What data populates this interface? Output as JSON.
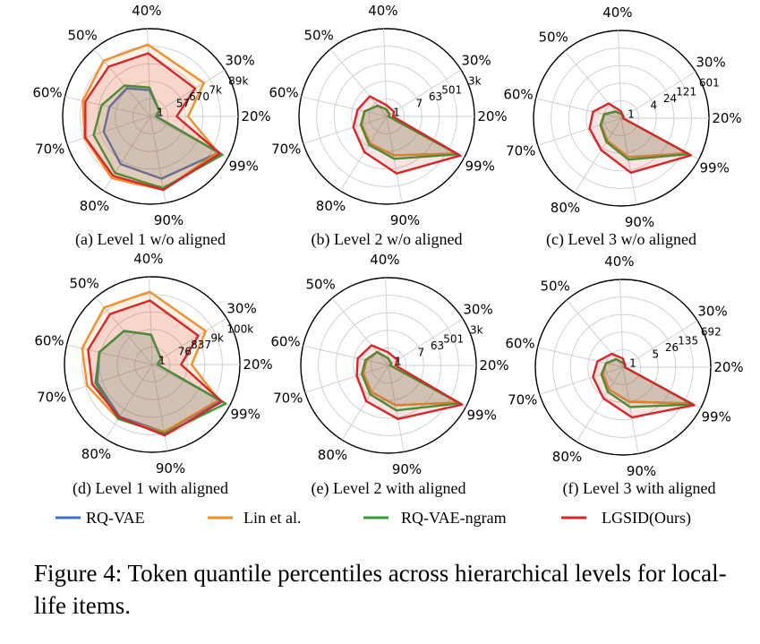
{
  "chart_data": [
    {
      "type": "radar",
      "title": "(a) Level 1 w/o aligned",
      "categories": [
        "20%",
        "30%",
        "40%",
        "50%",
        "60%",
        "70%",
        "80%",
        "90%",
        "99%"
      ],
      "radial_tick_labels": [
        "1",
        "57",
        "670",
        "7k",
        "89k"
      ],
      "series": [
        {
          "name": "RQ-VAE",
          "values": [
            0.07,
            0.12,
            0.3,
            0.42,
            0.48,
            0.56,
            0.64,
            0.72,
            0.88
          ]
        },
        {
          "name": "Lin et al.",
          "values": [
            0.43,
            0.72,
            0.82,
            0.83,
            0.79,
            0.79,
            0.83,
            0.85,
            0.87
          ]
        },
        {
          "name": "RQ-VAE-ngram",
          "values": [
            0.06,
            0.12,
            0.33,
            0.46,
            0.57,
            0.68,
            0.76,
            0.83,
            0.93
          ]
        },
        {
          "name": "LGSID(Ours)",
          "values": [
            0.3,
            0.6,
            0.72,
            0.74,
            0.76,
            0.78,
            0.8,
            0.85,
            0.9
          ]
        }
      ]
    },
    {
      "type": "radar",
      "title": "(b) Level 2 w/o aligned",
      "categories": [
        "20%",
        "30%",
        "40%",
        "50%",
        "60%",
        "70%",
        "80%",
        "90%",
        "99%"
      ],
      "radial_tick_labels": [
        "1",
        "7",
        "63",
        "501",
        "3k"
      ],
      "series": [
        {
          "name": "RQ-VAE",
          "values": [
            0.02,
            0.04,
            0.08,
            0.16,
            0.26,
            0.3,
            0.36,
            0.45,
            0.9
          ]
        },
        {
          "name": "Lin et al.",
          "values": [
            0.02,
            0.04,
            0.08,
            0.16,
            0.26,
            0.3,
            0.36,
            0.45,
            0.9
          ]
        },
        {
          "name": "RQ-VAE-ngram",
          "values": [
            0.02,
            0.04,
            0.08,
            0.16,
            0.26,
            0.31,
            0.38,
            0.49,
            0.92
          ]
        },
        {
          "name": "LGSID(Ours)",
          "values": [
            0.07,
            0.1,
            0.13,
            0.3,
            0.34,
            0.4,
            0.48,
            0.66,
            0.95
          ]
        }
      ]
    },
    {
      "type": "radar",
      "title": "(c) Level 3 w/o aligned",
      "categories": [
        "20%",
        "30%",
        "40%",
        "50%",
        "60%",
        "70%",
        "80%",
        "90%",
        "99%"
      ],
      "radial_tick_labels": [
        "1",
        "4",
        "24",
        "121",
        "601"
      ],
      "series": [
        {
          "name": "RQ-VAE",
          "values": [
            0.02,
            0.03,
            0.05,
            0.1,
            0.2,
            0.24,
            0.3,
            0.45,
            0.85
          ]
        },
        {
          "name": "Lin et al.",
          "values": [
            0.02,
            0.03,
            0.05,
            0.1,
            0.2,
            0.24,
            0.3,
            0.45,
            0.85
          ]
        },
        {
          "name": "RQ-VAE-ngram",
          "values": [
            0.02,
            0.03,
            0.05,
            0.1,
            0.2,
            0.25,
            0.32,
            0.48,
            0.87
          ]
        },
        {
          "name": "LGSID(Ours)",
          "values": [
            0.02,
            0.03,
            0.08,
            0.22,
            0.33,
            0.38,
            0.43,
            0.63,
            0.9
          ]
        }
      ]
    },
    {
      "type": "radar",
      "title": "(d) Level 1 with aligned",
      "categories": [
        "20%",
        "30%",
        "40%",
        "50%",
        "60%",
        "70%",
        "80%",
        "90%",
        "99%"
      ],
      "radial_tick_labels": [
        "1",
        "76",
        "837",
        "9k",
        "100k"
      ],
      "series": [
        {
          "name": "RQ-VAE",
          "values": [
            0.06,
            0.12,
            0.34,
            0.5,
            0.62,
            0.66,
            0.7,
            0.78,
            0.88
          ]
        },
        {
          "name": "Lin et al.",
          "values": [
            0.45,
            0.72,
            0.83,
            0.85,
            0.82,
            0.78,
            0.73,
            0.78,
            0.86
          ]
        },
        {
          "name": "RQ-VAE-ngram",
          "values": [
            0.06,
            0.12,
            0.34,
            0.5,
            0.62,
            0.68,
            0.73,
            0.8,
            0.95
          ]
        },
        {
          "name": "LGSID(Ours)",
          "values": [
            0.33,
            0.62,
            0.73,
            0.75,
            0.75,
            0.72,
            0.71,
            0.82,
            0.9
          ]
        }
      ]
    },
    {
      "type": "radar",
      "title": "(e) Level 2 with aligned",
      "categories": [
        "20%",
        "30%",
        "40%",
        "50%",
        "60%",
        "70%",
        "80%",
        "90%",
        "99%"
      ],
      "radial_tick_labels": [
        "1",
        "7",
        "63",
        "501",
        "3k"
      ],
      "series": [
        {
          "name": "RQ-VAE",
          "values": [
            0.02,
            0.04,
            0.08,
            0.2,
            0.26,
            0.3,
            0.36,
            0.46,
            0.9
          ]
        },
        {
          "name": "Lin et al.",
          "values": [
            0.02,
            0.04,
            0.08,
            0.2,
            0.26,
            0.3,
            0.36,
            0.46,
            0.9
          ]
        },
        {
          "name": "RQ-VAE-ngram",
          "values": [
            0.02,
            0.04,
            0.08,
            0.2,
            0.27,
            0.32,
            0.39,
            0.52,
            0.92
          ]
        },
        {
          "name": "LGSID(Ours)",
          "values": [
            0.08,
            0.12,
            0.15,
            0.3,
            0.36,
            0.38,
            0.48,
            0.62,
            0.95
          ]
        }
      ]
    },
    {
      "type": "radar",
      "title": "(f) Level 3 with aligned",
      "categories": [
        "20%",
        "30%",
        "40%",
        "50%",
        "60%",
        "70%",
        "80%",
        "90%",
        "99%"
      ],
      "radial_tick_labels": [
        "1",
        "5",
        "26",
        "135",
        "692"
      ],
      "series": [
        {
          "name": "RQ-VAE",
          "values": [
            0.02,
            0.03,
            0.05,
            0.12,
            0.2,
            0.24,
            0.3,
            0.4,
            0.88
          ]
        },
        {
          "name": "Lin et al.",
          "values": [
            0.02,
            0.03,
            0.05,
            0.12,
            0.2,
            0.24,
            0.3,
            0.4,
            0.88
          ]
        },
        {
          "name": "RQ-VAE-ngram",
          "values": [
            0.02,
            0.03,
            0.05,
            0.12,
            0.2,
            0.26,
            0.33,
            0.46,
            0.9
          ]
        },
        {
          "name": "LGSID(Ours)",
          "values": [
            0.02,
            0.03,
            0.1,
            0.2,
            0.3,
            0.36,
            0.42,
            0.58,
            0.92
          ]
        }
      ]
    }
  ],
  "legend": [
    {
      "label": "RQ-VAE",
      "color": "#4472c4"
    },
    {
      "label": "Lin et al.",
      "color": "#f28e2b"
    },
    {
      "label": "RQ-VAE-ngram",
      "color": "#3a9a3a"
    },
    {
      "label": "LGSID(Ours)",
      "color": "#d62728"
    }
  ],
  "caption": "Figure 4: Token quantile percentiles across hierarchical levels for local-life items."
}
